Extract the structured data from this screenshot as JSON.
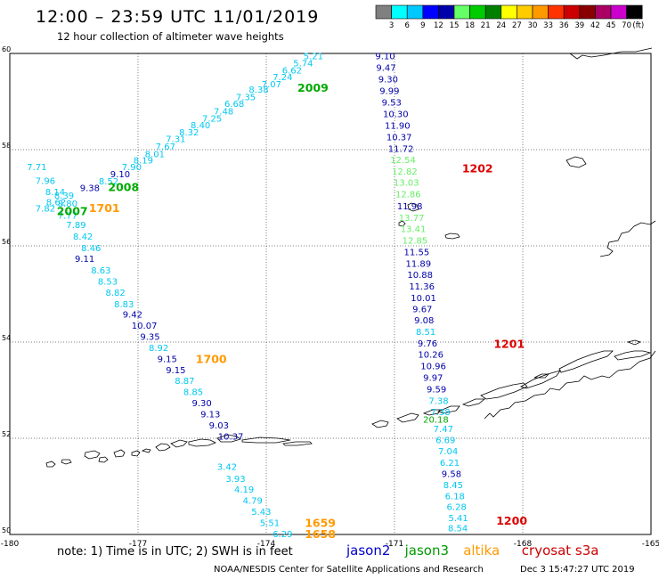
{
  "header": {
    "title": "12:00 – 23:59 UTC 11/01/2019",
    "subtitle": "12 hour collection of altimeter wave heights"
  },
  "colorbar": {
    "colors": [
      "#808080",
      "#00ffff",
      "#00c8ff",
      "#0000ff",
      "#0000aa",
      "#66ff66",
      "#00cc00",
      "#008000",
      "#ffff00",
      "#ffcc00",
      "#ff9900",
      "#ff3300",
      "#cc0000",
      "#880000",
      "#aa0066",
      "#cc00cc",
      "#000000"
    ],
    "labels": [
      "3",
      "6",
      "9",
      "12",
      "15",
      "18",
      "21",
      "24",
      "27",
      "30",
      "33",
      "36",
      "39",
      "42",
      "45",
      "70"
    ],
    "unit": "(ft)"
  },
  "footer": {
    "note": "note:  1) Time is in UTC;  2) SWH is in feet",
    "satellites": [
      {
        "name": "jason2",
        "color": "#0000cc"
      },
      {
        "name": "jason3",
        "color": "#009900"
      },
      {
        "name": "altika",
        "color": "#ff9900"
      },
      {
        "name": "cryosat s3a",
        "color": "#cc0000"
      }
    ],
    "credit": "NOAA/NESDIS Center for Satellite Applications and Research",
    "timestamp": "Dec  3 15:47:27 UTC 2019"
  },
  "chart_data": {
    "type": "map",
    "xlim": [
      -180,
      -165
    ],
    "ylim": [
      50,
      60
    ],
    "x_ticks": [
      "-180",
      "-177",
      "-174",
      "-171",
      "-168",
      "-165"
    ],
    "y_ticks": [
      "50",
      "52",
      "54",
      "56",
      "58",
      "60"
    ],
    "grid": true,
    "colors": {
      "c": "#00c8f0",
      "b": "#0000aa",
      "g": "#00aa00",
      "lg": "#66ee66",
      "o": "#ff9900",
      "r": "#dd0000"
    },
    "track_labels": [
      {
        "text": "5.21",
        "lon": -173.13,
        "lat": 59.95,
        "color": "c"
      },
      {
        "text": "5.74",
        "lon": -173.37,
        "lat": 59.81,
        "color": "c"
      },
      {
        "text": "6.62",
        "lon": -173.63,
        "lat": 59.66,
        "color": "c"
      },
      {
        "text": "7.24",
        "lon": -173.85,
        "lat": 59.52,
        "color": "c"
      },
      {
        "text": "7.07",
        "lon": -174.11,
        "lat": 59.37,
        "color": "c"
      },
      {
        "text": "8.38",
        "lon": -174.41,
        "lat": 59.26,
        "color": "c"
      },
      {
        "text": "7.35",
        "lon": -174.71,
        "lat": 59.1,
        "color": "c"
      },
      {
        "text": "6.68",
        "lon": -174.98,
        "lat": 58.96,
        "color": "c"
      },
      {
        "text": "7.48",
        "lon": -175.23,
        "lat": 58.81,
        "color": "c"
      },
      {
        "text": "7.25",
        "lon": -175.5,
        "lat": 58.66,
        "color": "c"
      },
      {
        "text": "8.40",
        "lon": -175.77,
        "lat": 58.52,
        "color": "c"
      },
      {
        "text": "8.32",
        "lon": -176.04,
        "lat": 58.37,
        "color": "c"
      },
      {
        "text": "7.31",
        "lon": -176.35,
        "lat": 58.23,
        "color": "c"
      },
      {
        "text": "7.67",
        "lon": -176.59,
        "lat": 58.07,
        "color": "c"
      },
      {
        "text": "8.01",
        "lon": -176.84,
        "lat": 57.92,
        "color": "c"
      },
      {
        "text": "8.19",
        "lon": -177.11,
        "lat": 57.79,
        "color": "c"
      },
      {
        "text": "7.90",
        "lon": -177.38,
        "lat": 57.65,
        "color": "c"
      },
      {
        "text": "9.10",
        "lon": -177.65,
        "lat": 57.5,
        "color": "b"
      },
      {
        "text": "8.52",
        "lon": -177.92,
        "lat": 57.35,
        "color": "c"
      },
      {
        "text": "9.38",
        "lon": -178.36,
        "lat": 57.21,
        "color": "b"
      },
      {
        "text": "7.71",
        "lon": -179.6,
        "lat": 57.65,
        "color": "c"
      },
      {
        "text": "7.96",
        "lon": -179.4,
        "lat": 57.36,
        "color": "c"
      },
      {
        "text": "8.14",
        "lon": -179.17,
        "lat": 57.13,
        "color": "c"
      },
      {
        "text": "8.39",
        "lon": -178.96,
        "lat": 57.06,
        "color": "c"
      },
      {
        "text": "8.62",
        "lon": -179.15,
        "lat": 56.92,
        "color": "c"
      },
      {
        "text": "8.80",
        "lon": -178.88,
        "lat": 56.89,
        "color": "c"
      },
      {
        "text": "7.82",
        "lon": -179.4,
        "lat": 56.79,
        "color": "c"
      },
      {
        "text": "7.77",
        "lon": -178.88,
        "lat": 56.64,
        "color": "c"
      },
      {
        "text": "7.89",
        "lon": -178.68,
        "lat": 56.44,
        "color": "c"
      },
      {
        "text": "8.42",
        "lon": -178.52,
        "lat": 56.2,
        "color": "c"
      },
      {
        "text": "8.46",
        "lon": -178.33,
        "lat": 55.96,
        "color": "c"
      },
      {
        "text": "9.11",
        "lon": -178.48,
        "lat": 55.74,
        "color": "b"
      },
      {
        "text": "8.63",
        "lon": -178.1,
        "lat": 55.5,
        "color": "c"
      },
      {
        "text": "8.53",
        "lon": -177.94,
        "lat": 55.27,
        "color": "c"
      },
      {
        "text": "8.82",
        "lon": -177.76,
        "lat": 55.04,
        "color": "c"
      },
      {
        "text": "8.83",
        "lon": -177.56,
        "lat": 54.8,
        "color": "c"
      },
      {
        "text": "9.42",
        "lon": -177.36,
        "lat": 54.58,
        "color": "b"
      },
      {
        "text": "10.07",
        "lon": -177.15,
        "lat": 54.35,
        "color": "b"
      },
      {
        "text": "9.35",
        "lon": -176.95,
        "lat": 54.12,
        "color": "b"
      },
      {
        "text": "8.92",
        "lon": -176.75,
        "lat": 53.89,
        "color": "c"
      },
      {
        "text": "9.15",
        "lon": -176.55,
        "lat": 53.66,
        "color": "b"
      },
      {
        "text": "9.15",
        "lon": -176.35,
        "lat": 53.43,
        "color": "b"
      },
      {
        "text": "8.87",
        "lon": -176.14,
        "lat": 53.2,
        "color": "c"
      },
      {
        "text": "8.85",
        "lon": -175.94,
        "lat": 52.97,
        "color": "c"
      },
      {
        "text": "9.30",
        "lon": -175.74,
        "lat": 52.74,
        "color": "b"
      },
      {
        "text": "9.13",
        "lon": -175.54,
        "lat": 52.51,
        "color": "b"
      },
      {
        "text": "9.03",
        "lon": -175.34,
        "lat": 52.28,
        "color": "b"
      },
      {
        "text": "10.37",
        "lon": -175.13,
        "lat": 52.05,
        "color": "b"
      },
      {
        "text": "3.42",
        "lon": -175.15,
        "lat": 51.42,
        "color": "c"
      },
      {
        "text": "3.93",
        "lon": -174.95,
        "lat": 51.17,
        "color": "c"
      },
      {
        "text": "4.19",
        "lon": -174.75,
        "lat": 50.94,
        "color": "c"
      },
      {
        "text": "4.79",
        "lon": -174.55,
        "lat": 50.71,
        "color": "c"
      },
      {
        "text": "5.43",
        "lon": -174.35,
        "lat": 50.48,
        "color": "c"
      },
      {
        "text": "5.51",
        "lon": -174.15,
        "lat": 50.25,
        "color": "c"
      },
      {
        "text": "6.29",
        "lon": -173.85,
        "lat": 50.02,
        "color": "c"
      },
      {
        "text": "9.10",
        "lon": -171.45,
        "lat": 59.95,
        "color": "b"
      },
      {
        "text": "9.47",
        "lon": -171.43,
        "lat": 59.71,
        "color": "b"
      },
      {
        "text": "9.30",
        "lon": -171.38,
        "lat": 59.47,
        "color": "b"
      },
      {
        "text": "9.99",
        "lon": -171.35,
        "lat": 59.23,
        "color": "b"
      },
      {
        "text": "9.53",
        "lon": -171.3,
        "lat": 58.99,
        "color": "b"
      },
      {
        "text": "10.30",
        "lon": -171.27,
        "lat": 58.75,
        "color": "b"
      },
      {
        "text": "11.90",
        "lon": -171.23,
        "lat": 58.51,
        "color": "b"
      },
      {
        "text": "10.37",
        "lon": -171.19,
        "lat": 58.27,
        "color": "b"
      },
      {
        "text": "11.72",
        "lon": -171.15,
        "lat": 58.03,
        "color": "b"
      },
      {
        "text": "12.54",
        "lon": -171.1,
        "lat": 57.8,
        "color": "lg"
      },
      {
        "text": "12.82",
        "lon": -171.06,
        "lat": 57.56,
        "color": "lg"
      },
      {
        "text": "13.03",
        "lon": -171.02,
        "lat": 57.32,
        "color": "lg"
      },
      {
        "text": "12.86",
        "lon": -170.98,
        "lat": 57.08,
        "color": "lg"
      },
      {
        "text": "11.98",
        "lon": -170.94,
        "lat": 56.83,
        "color": "b"
      },
      {
        "text": "13.77",
        "lon": -170.9,
        "lat": 56.59,
        "color": "lg"
      },
      {
        "text": "13.41",
        "lon": -170.86,
        "lat": 56.36,
        "color": "lg"
      },
      {
        "text": "12.85",
        "lon": -170.82,
        "lat": 56.12,
        "color": "lg"
      },
      {
        "text": "11.55",
        "lon": -170.78,
        "lat": 55.88,
        "color": "b"
      },
      {
        "text": "11.89",
        "lon": -170.74,
        "lat": 55.64,
        "color": "b"
      },
      {
        "text": "10.88",
        "lon": -170.7,
        "lat": 55.41,
        "color": "b"
      },
      {
        "text": "11.36",
        "lon": -170.66,
        "lat": 55.17,
        "color": "b"
      },
      {
        "text": "10.01",
        "lon": -170.62,
        "lat": 54.93,
        "color": "b"
      },
      {
        "text": "9.67",
        "lon": -170.58,
        "lat": 54.69,
        "color": "b"
      },
      {
        "text": "9.08",
        "lon": -170.54,
        "lat": 54.46,
        "color": "b"
      },
      {
        "text": "8.51",
        "lon": -170.5,
        "lat": 54.22,
        "color": "c"
      },
      {
        "text": "9.76",
        "lon": -170.46,
        "lat": 53.98,
        "color": "b"
      },
      {
        "text": "10.26",
        "lon": -170.45,
        "lat": 53.75,
        "color": "b"
      },
      {
        "text": "10.96",
        "lon": -170.39,
        "lat": 53.51,
        "color": "b"
      },
      {
        "text": "9.97",
        "lon": -170.33,
        "lat": 53.27,
        "color": "b"
      },
      {
        "text": "9.59",
        "lon": -170.25,
        "lat": 53.03,
        "color": "b"
      },
      {
        "text": "7.38",
        "lon": -170.2,
        "lat": 52.79,
        "color": "c"
      },
      {
        "text": "7.38",
        "lon": -170.16,
        "lat": 52.56,
        "color": "c"
      },
      {
        "text": "20.18",
        "lon": -170.33,
        "lat": 52.4,
        "color": "g"
      },
      {
        "text": "7.47",
        "lon": -170.09,
        "lat": 52.2,
        "color": "c"
      },
      {
        "text": "6.69",
        "lon": -170.04,
        "lat": 51.97,
        "color": "c"
      },
      {
        "text": "7.04",
        "lon": -169.98,
        "lat": 51.74,
        "color": "c"
      },
      {
        "text": "6.21",
        "lon": -169.94,
        "lat": 51.5,
        "color": "c"
      },
      {
        "text": "9.58",
        "lon": -169.9,
        "lat": 51.27,
        "color": "b"
      },
      {
        "text": "8.45",
        "lon": -169.86,
        "lat": 51.04,
        "color": "c"
      },
      {
        "text": "6.18",
        "lon": -169.82,
        "lat": 50.81,
        "color": "c"
      },
      {
        "text": "6.28",
        "lon": -169.78,
        "lat": 50.58,
        "color": "c"
      },
      {
        "text": "5.41",
        "lon": -169.74,
        "lat": 50.35,
        "color": "c"
      },
      {
        "text": "8.54",
        "lon": -169.75,
        "lat": 50.14,
        "color": "c"
      }
    ],
    "time_labels": [
      {
        "text": "2009",
        "lon": -173.27,
        "lat": 59.3,
        "color": "g"
      },
      {
        "text": "2008",
        "lon": -177.7,
        "lat": 57.23,
        "color": "g"
      },
      {
        "text": "2007",
        "lon": -178.9,
        "lat": 56.73,
        "color": "g"
      },
      {
        "text": "1701",
        "lon": -178.15,
        "lat": 56.8,
        "color": "o"
      },
      {
        "text": "1700",
        "lon": -175.65,
        "lat": 53.66,
        "color": "o"
      },
      {
        "text": "1659",
        "lon": -173.1,
        "lat": 50.25,
        "color": "o"
      },
      {
        "text": "1658",
        "lon": -173.1,
        "lat": 50.02,
        "color": "o"
      },
      {
        "text": "1202",
        "lon": -169.42,
        "lat": 57.62,
        "color": "r"
      },
      {
        "text": "1201",
        "lon": -168.68,
        "lat": 53.97,
        "color": "r"
      },
      {
        "text": "1200",
        "lon": -168.62,
        "lat": 50.3,
        "color": "r"
      }
    ]
  }
}
